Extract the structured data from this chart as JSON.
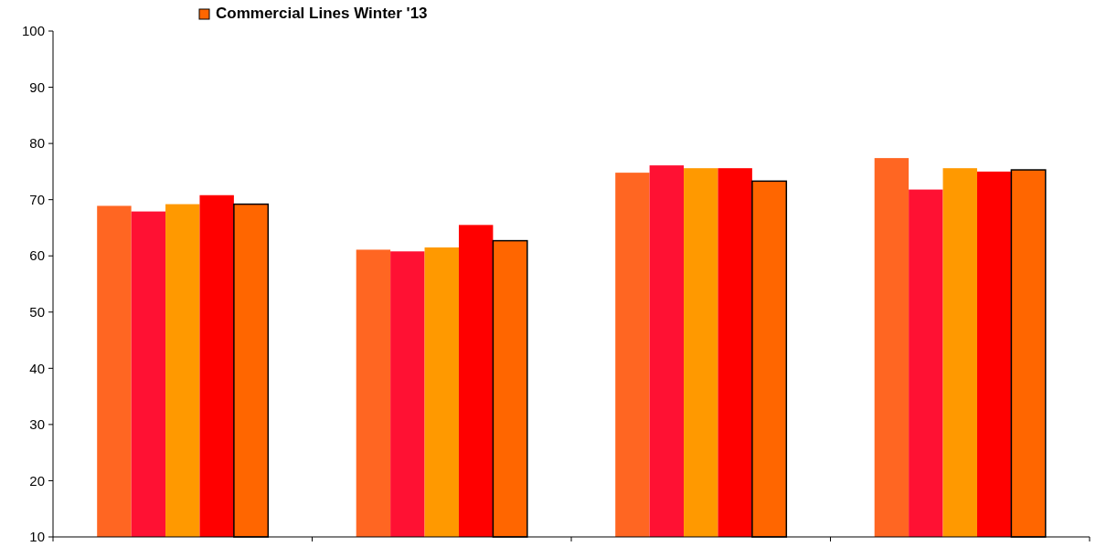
{
  "chart_data": {
    "type": "bar",
    "categories": [
      null,
      null,
      null,
      null
    ],
    "series": [
      {
        "color": "#ff6622",
        "values": [
          68.9,
          61.1,
          74.8,
          77.4
        ]
      },
      {
        "color": "#ff1133",
        "values": [
          67.9,
          60.8,
          76.1,
          71.8
        ]
      },
      {
        "color": "#ff9900",
        "values": [
          69.2,
          61.5,
          75.6,
          75.6
        ]
      },
      {
        "color": "#ff0000",
        "values": [
          70.8,
          65.5,
          75.6,
          75.0
        ]
      },
      {
        "name": "Commercial Lines Winter '13",
        "color": "#ff6600",
        "values": [
          69.2,
          62.7,
          73.3,
          75.3
        ]
      }
    ],
    "ylim": [
      10,
      100
    ],
    "yticks": [
      10,
      20,
      30,
      40,
      50,
      60,
      70,
      80,
      90,
      100
    ],
    "grid": false,
    "legend": "top"
  }
}
